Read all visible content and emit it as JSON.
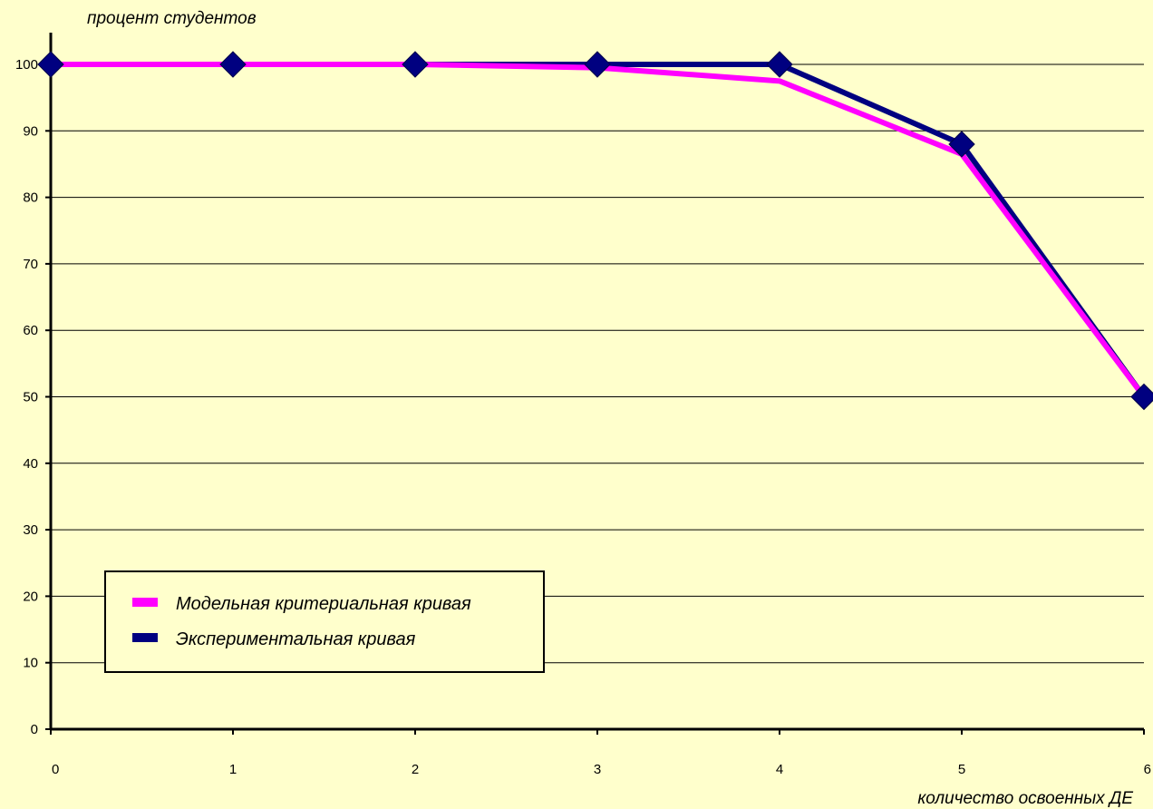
{
  "chart_data": {
    "type": "line",
    "ylabel": "процент студентов",
    "xlabel": "количество освоенных ДЕ",
    "x": [
      0,
      1,
      2,
      3,
      4,
      5,
      6
    ],
    "xlim": [
      0,
      6
    ],
    "ylim": [
      0,
      100
    ],
    "yticks": [
      0,
      10,
      20,
      30,
      40,
      50,
      60,
      70,
      80,
      90,
      100
    ],
    "xticks": [
      0,
      1,
      2,
      3,
      4,
      5,
      6
    ],
    "grid": "horizontal",
    "legend_position": "bottom-left",
    "series": [
      {
        "name": "Модельная критериальная кривая",
        "color": "#ff00ff",
        "values": [
          100,
          100,
          100,
          99.5,
          97.5,
          86.5,
          50
        ]
      },
      {
        "name": "Экспериментальная кривая",
        "color": "#000080",
        "marker": "diamond",
        "values": [
          100,
          100,
          100,
          100,
          100,
          88,
          50
        ]
      }
    ]
  }
}
